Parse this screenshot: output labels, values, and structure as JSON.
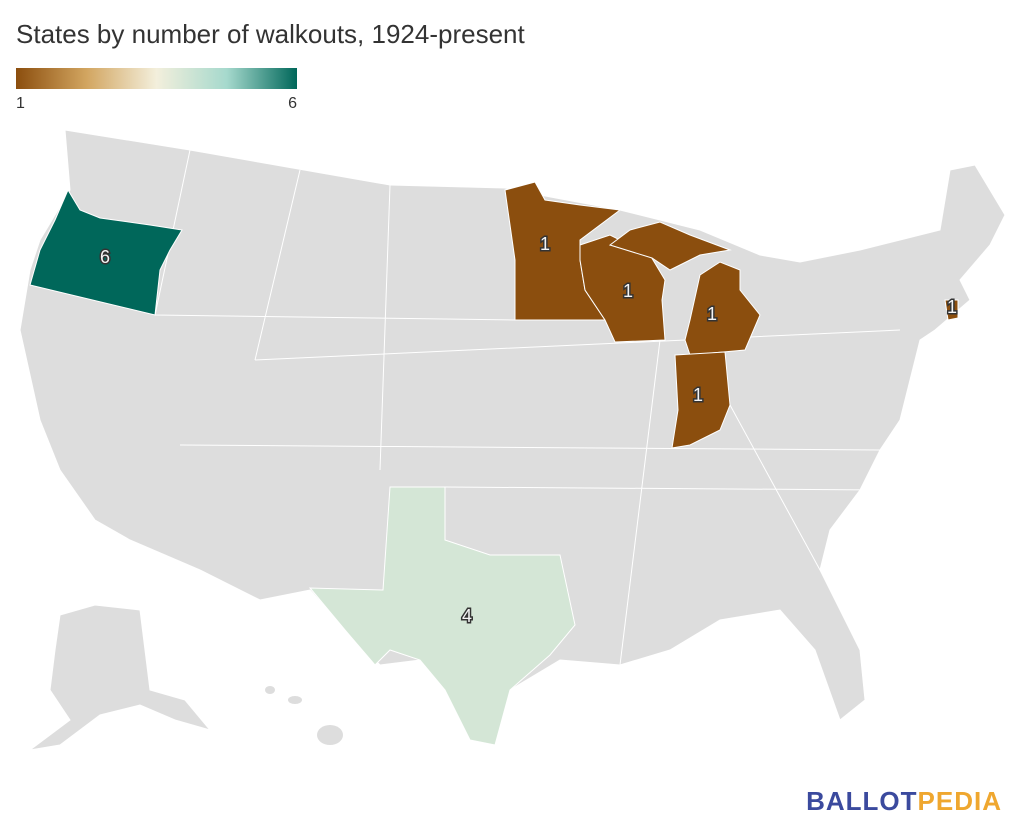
{
  "title": "States by number of walkouts, 1924-present",
  "legend": {
    "min": 1,
    "max": 6,
    "colors": [
      "#8b4e0e",
      "#d2a560",
      "#f3efdc",
      "#a6d9cd",
      "#00675a"
    ]
  },
  "regions": {
    "values": [
      6,
      1,
      1,
      1,
      1,
      4,
      1
    ]
  },
  "logo": {
    "part1": "BALLOT",
    "part2": "PEDIA"
  }
}
